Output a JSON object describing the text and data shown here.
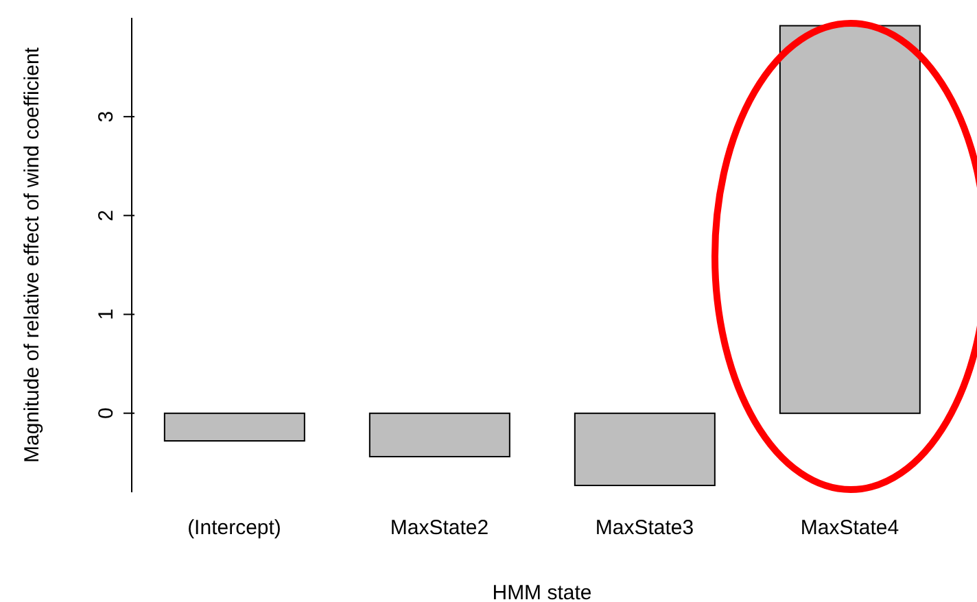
{
  "chart_data": {
    "type": "bar",
    "xlabel": "HMM state",
    "ylabel": "Magnitude of relative effect of wind coefficient",
    "categories": [
      "(Intercept)",
      "MaxState2",
      "MaxState3",
      "MaxState4"
    ],
    "values": [
      -0.28,
      -0.44,
      -0.73,
      3.92
    ],
    "color": "#bebebe",
    "ylim": [
      -0.8,
      4
    ],
    "yticks": [
      0,
      1,
      2,
      3
    ]
  }
}
